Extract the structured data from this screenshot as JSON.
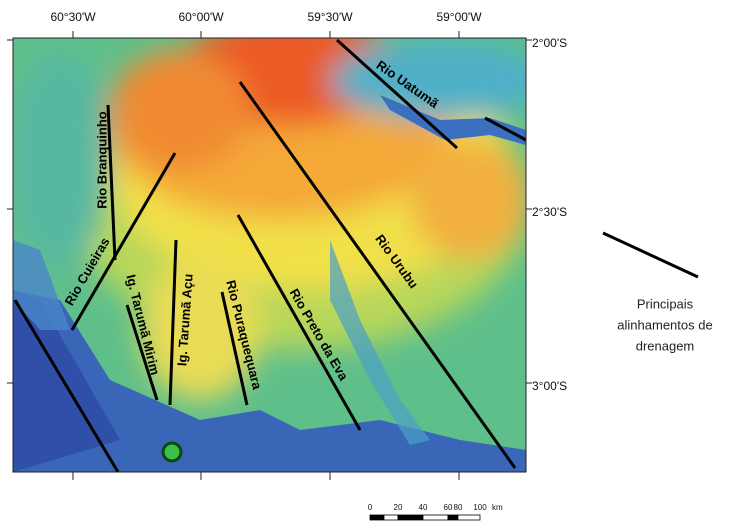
{
  "axes": {
    "top": [
      "60°30'W",
      "60°00'W",
      "59°30'W",
      "59°00'W"
    ],
    "right": [
      "2°00'S",
      "2°30'S",
      "3°00'S"
    ]
  },
  "rivers": [
    {
      "label": "Rio Uatumã"
    },
    {
      "label": "Rio Branquinho"
    },
    {
      "label": "Rio Cuieiras"
    },
    {
      "label": "Ig. Tarumã Mirim"
    },
    {
      "label": "Ig. Tarumã Açu"
    },
    {
      "label": "Rio Puraquequara"
    },
    {
      "label": "Rio Preto da Eva"
    },
    {
      "label": "Rio Urubu"
    }
  ],
  "legend": {
    "lines": [
      "Principais",
      "alinhamentos de",
      "drenagem"
    ]
  },
  "scale_bar": {
    "labels": [
      "0",
      "20",
      "40",
      "60",
      "80",
      "100"
    ],
    "unit": "km"
  }
}
